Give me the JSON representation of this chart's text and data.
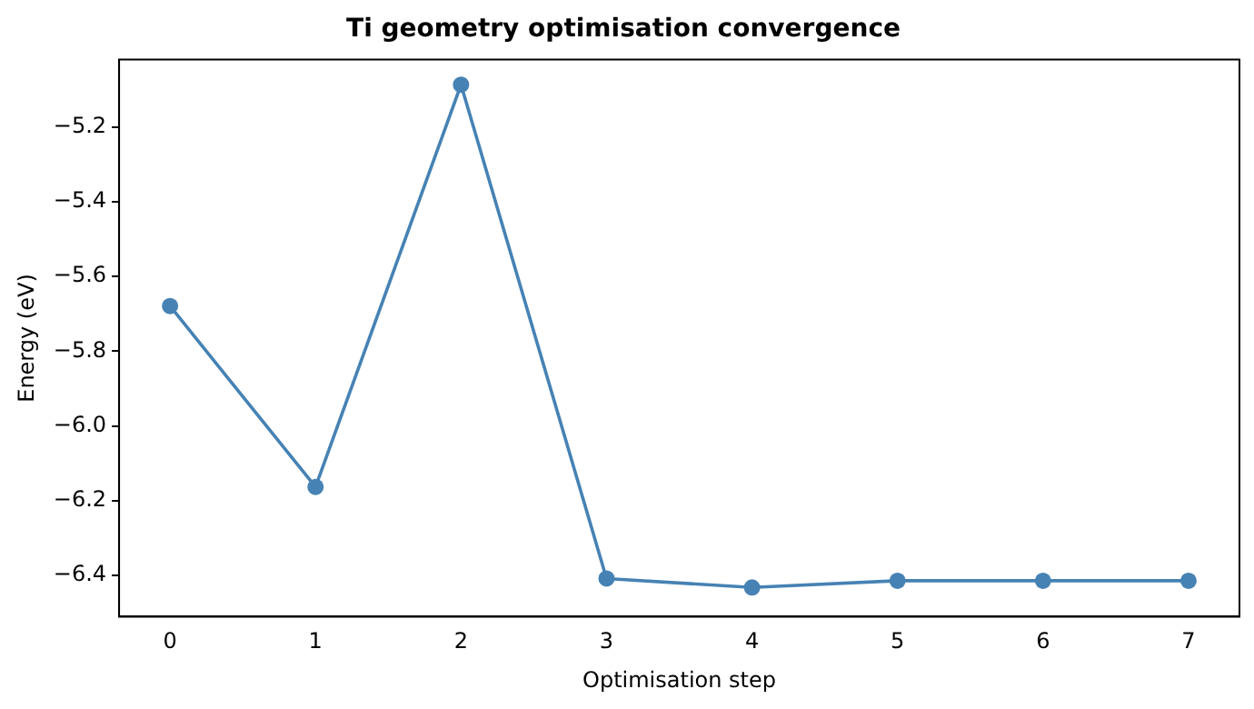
{
  "chart_data": {
    "type": "line",
    "title": "Ti geometry optimisation convergence",
    "xlabel": "Optimisation step",
    "ylabel": "Energy (eV)",
    "x": [
      0,
      1,
      2,
      3,
      4,
      5,
      6,
      7
    ],
    "series": [
      {
        "color": "#4682b4",
        "values": [
          -5.679,
          -6.163,
          -5.087,
          -6.408,
          -6.432,
          -6.414,
          -6.414,
          -6.414
        ]
      }
    ],
    "xlim": [
      -0.35,
      7.35
    ],
    "xticks": [
      0,
      1,
      2,
      3,
      4,
      5,
      6,
      7
    ],
    "ylim": [
      -6.51,
      -5.02
    ],
    "yticks": [
      {
        "value": -6.4,
        "label": "−6.4"
      },
      {
        "value": -6.2,
        "label": "−6.2"
      },
      {
        "value": -6.0,
        "label": "−6.0"
      },
      {
        "value": -5.8,
        "label": "−5.8"
      },
      {
        "value": -5.6,
        "label": "−5.6"
      },
      {
        "value": -5.4,
        "label": "−5.4"
      },
      {
        "value": -5.2,
        "label": "−5.2"
      }
    ],
    "grid": false,
    "legend": false,
    "marker": "circle",
    "line_style": "solid"
  }
}
